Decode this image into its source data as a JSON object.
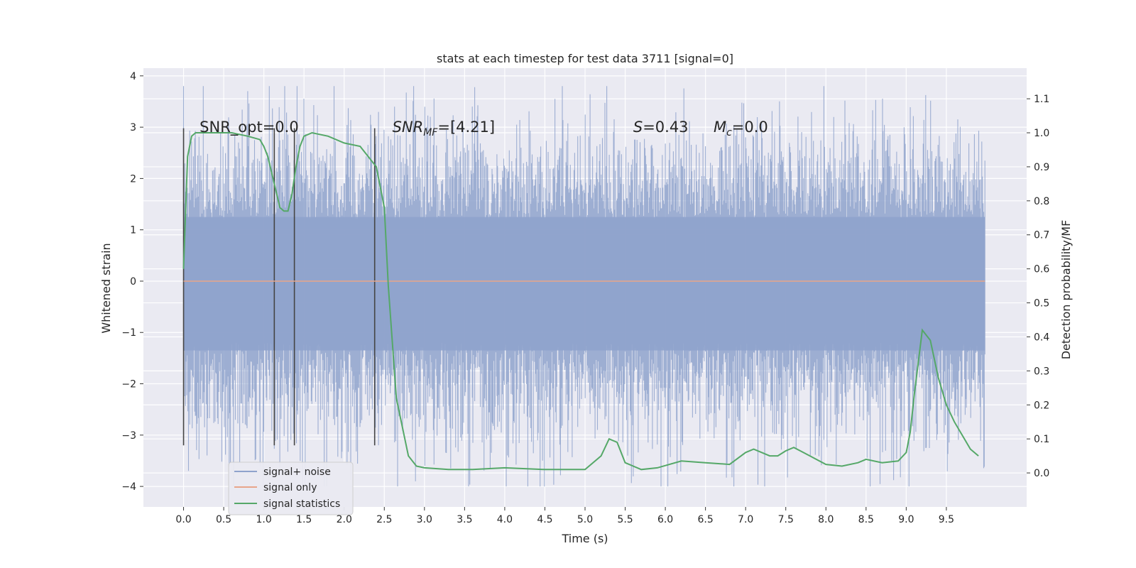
{
  "chart_data": {
    "type": "line",
    "title": "stats at each timestep for test data 3711 [signal=0]",
    "xlabel": "Time (s)",
    "ylabel": "Whitened strain",
    "y2label": "Detection probability/MF",
    "xlim": [
      -0.5,
      10.5
    ],
    "ylim": [
      -4.4,
      4.15
    ],
    "y2lim": [
      -0.1,
      1.19
    ],
    "xticks": [
      "0.0",
      "0.5",
      "1.0",
      "1.5",
      "2.0",
      "2.5",
      "3.0",
      "3.5",
      "4.0",
      "4.5",
      "5.0",
      "5.5",
      "6.0",
      "6.5",
      "7.0",
      "7.5",
      "8.0",
      "8.5",
      "9.0",
      "9.5"
    ],
    "yticks": [
      "−4",
      "−3",
      "−2",
      "−1",
      "0",
      "1",
      "2",
      "3",
      "4"
    ],
    "y2ticks": [
      "0.0",
      "0.1",
      "0.2",
      "0.3",
      "0.4",
      "0.5",
      "0.6",
      "0.7",
      "0.8",
      "0.9",
      "1.0",
      "1.1"
    ],
    "grid": true,
    "legend": {
      "position": "lower-left",
      "entries": [
        {
          "label": "signal+ noise",
          "color": "#8fa3cc"
        },
        {
          "label": "signal only",
          "color": "#e8a58a"
        },
        {
          "label": "signal statistics",
          "color": "#55a868"
        }
      ]
    },
    "annotations": [
      {
        "text": "SNR_opt=0.0",
        "x": 0.2,
        "y": 3.0
      },
      {
        "text": "SNR",
        "sub": "MF",
        "rest": "=[4.21]",
        "italic": true,
        "x": 2.6,
        "y": 3.0
      },
      {
        "text": "S",
        "rest": "=0.43",
        "italic": true,
        "x": 5.6,
        "y": 3.0
      },
      {
        "text": "M",
        "sub": "c",
        "rest": "=0.0",
        "italic": true,
        "x": 6.6,
        "y": 3.0
      }
    ],
    "series": [
      {
        "name": "signal+ noise",
        "color": "#8fa3cc",
        "description": "whitened noise, approximately ±2.5 amplitude, x from 0 to 10 s",
        "x_range": [
          0.0,
          9.98
        ],
        "amplitude": 2.5
      },
      {
        "name": "signal only",
        "color": "#e8a58a",
        "x": [
          0.0,
          9.98
        ],
        "y": [
          0,
          0
        ]
      },
      {
        "name": "signal statistics",
        "color": "#55a868",
        "axis": "right",
        "x": [
          0.0,
          0.05,
          0.1,
          0.15,
          0.25,
          0.4,
          0.6,
          0.8,
          0.95,
          1.0,
          1.05,
          1.1,
          1.15,
          1.2,
          1.25,
          1.3,
          1.35,
          1.4,
          1.45,
          1.5,
          1.6,
          1.8,
          2.0,
          2.2,
          2.3,
          2.4,
          2.5,
          2.55,
          2.65,
          2.8,
          2.9,
          3.0,
          3.3,
          3.6,
          4.0,
          4.5,
          5.0,
          5.2,
          5.3,
          5.4,
          5.5,
          5.7,
          5.9,
          6.2,
          6.5,
          6.8,
          7.0,
          7.1,
          7.2,
          7.3,
          7.4,
          7.5,
          7.6,
          7.8,
          8.0,
          8.2,
          8.4,
          8.5,
          8.7,
          8.9,
          9.0,
          9.05,
          9.1,
          9.2,
          9.3,
          9.4,
          9.5,
          9.6,
          9.7,
          9.8,
          9.9
        ],
        "y": [
          0.6,
          0.93,
          0.99,
          1.0,
          1.0,
          1.0,
          1.0,
          0.99,
          0.98,
          0.96,
          0.93,
          0.88,
          0.83,
          0.78,
          0.77,
          0.77,
          0.82,
          0.9,
          0.96,
          0.99,
          1.0,
          0.99,
          0.97,
          0.96,
          0.93,
          0.9,
          0.78,
          0.55,
          0.22,
          0.05,
          0.02,
          0.015,
          0.01,
          0.01,
          0.015,
          0.01,
          0.01,
          0.05,
          0.1,
          0.09,
          0.03,
          0.01,
          0.015,
          0.035,
          0.03,
          0.025,
          0.06,
          0.07,
          0.06,
          0.05,
          0.05,
          0.065,
          0.075,
          0.05,
          0.025,
          0.02,
          0.03,
          0.04,
          0.03,
          0.035,
          0.06,
          0.12,
          0.23,
          0.42,
          0.39,
          0.28,
          0.2,
          0.15,
          0.11,
          0.07,
          0.05
        ]
      }
    ],
    "vertical_markers": {
      "color": "#444444",
      "x": [
        0.0,
        1.13,
        1.38,
        2.38
      ],
      "y_range": [
        -3.2,
        2.98
      ]
    }
  }
}
